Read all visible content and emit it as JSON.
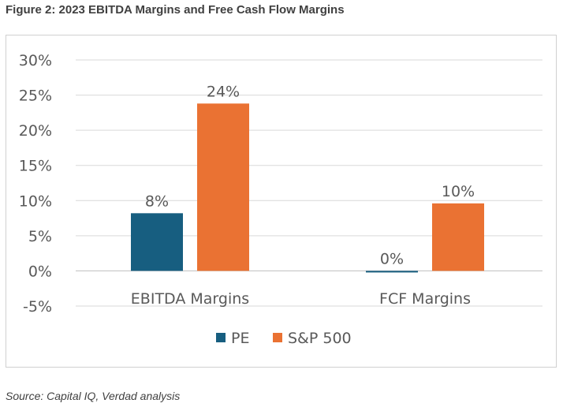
{
  "figure_title": "Figure 2: 2023 EBITDA Margins and Free Cash Flow Margins",
  "source": "Source: Capital IQ, Verdad analysis",
  "colors": {
    "PE": "#175e80",
    "S&P 500": "#ea7233",
    "grid": "#d9d9d9",
    "axis": "#bfbfbf",
    "text": "#595959"
  },
  "chart_data": {
    "type": "bar",
    "title": "",
    "xlabel": "",
    "ylabel": "",
    "categories": [
      "EBITDA Margins",
      "FCF Margins"
    ],
    "series": [
      {
        "name": "PE",
        "values": [
          8.2,
          -0.2
        ],
        "labels": [
          "8%",
          "0%"
        ]
      },
      {
        "name": "S&P 500",
        "values": [
          23.8,
          9.6
        ],
        "labels": [
          "24%",
          "10%"
        ]
      }
    ],
    "ylim": [
      -5,
      30
    ],
    "yticks": [
      30,
      25,
      20,
      15,
      10,
      5,
      0,
      -5
    ],
    "ytick_labels": [
      "30%",
      "25%",
      "20%",
      "15%",
      "10%",
      "5%",
      "0%",
      "-5%"
    ],
    "grid": true,
    "legend": "bottom-center"
  }
}
